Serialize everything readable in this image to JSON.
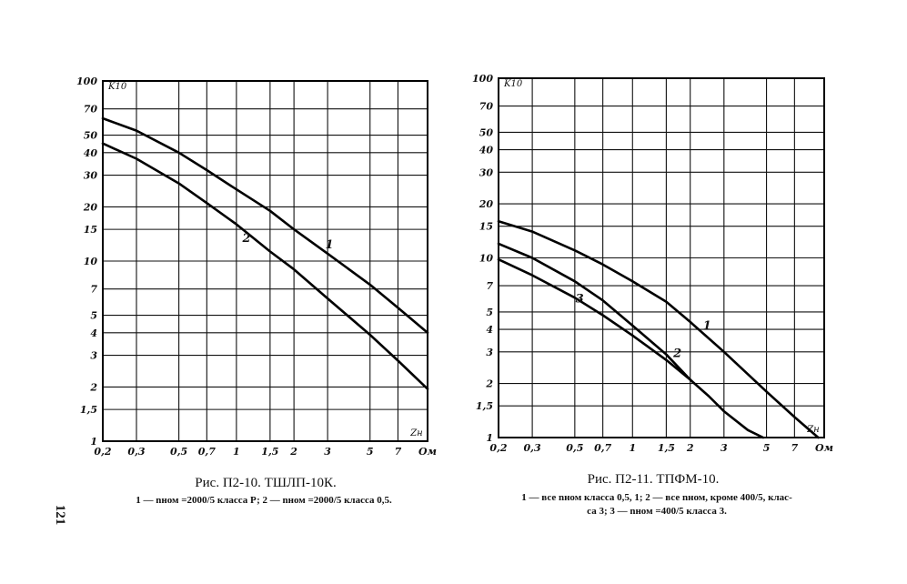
{
  "page_number": "121",
  "figures": [
    {
      "title": "Рис. П2-10. ТШЛП-10К.",
      "legend_line1": "1 — nном =2000/5 класса Р; 2 — nном =2000/5 класса 0,5.",
      "legend_line2": ""
    },
    {
      "title": "Рис. П2-11. ТПФМ-10.",
      "legend_line1": "1 — все nном класса 0,5, 1; 2 — все nном, кроме 400/5, клас-",
      "legend_line2": "са 3; 3 — nном =400/5 класса 3."
    }
  ],
  "chart_data": [
    {
      "type": "line",
      "log_x": true,
      "log_y": true,
      "xlim": [
        0.2,
        10
      ],
      "ylim": [
        1,
        100
      ],
      "x_ticks": [
        {
          "v": 0.2,
          "t": "0,2"
        },
        {
          "v": 0.3,
          "t": "0,3"
        },
        {
          "v": 0.5,
          "t": "0,5"
        },
        {
          "v": 0.7,
          "t": "0,7"
        },
        {
          "v": 1,
          "t": "1"
        },
        {
          "v": 1.5,
          "t": "1,5"
        },
        {
          "v": 2,
          "t": "2"
        },
        {
          "v": 3,
          "t": "3"
        },
        {
          "v": 5,
          "t": "5"
        },
        {
          "v": 7,
          "t": "7"
        },
        {
          "v": 10,
          "t": "Ом"
        }
      ],
      "y_ticks": [
        {
          "v": 1,
          "t": "1"
        },
        {
          "v": 1.5,
          "t": "1,5"
        },
        {
          "v": 2,
          "t": "2"
        },
        {
          "v": 3,
          "t": "3"
        },
        {
          "v": 4,
          "t": "4"
        },
        {
          "v": 5,
          "t": "5"
        },
        {
          "v": 7,
          "t": "7"
        },
        {
          "v": 10,
          "t": "10"
        },
        {
          "v": 15,
          "t": "15"
        },
        {
          "v": 20,
          "t": "20"
        },
        {
          "v": 30,
          "t": "30"
        },
        {
          "v": 40,
          "t": "40"
        },
        {
          "v": 50,
          "t": "50"
        },
        {
          "v": 70,
          "t": "70"
        },
        {
          "v": 100,
          "t": "100"
        }
      ],
      "ylabel": "K10",
      "xlabel": "Zн",
      "series": [
        {
          "name": "1",
          "x": [
            0.2,
            0.3,
            0.5,
            0.7,
            1,
            1.5,
            2,
            3,
            5,
            7,
            10
          ],
          "y": [
            62,
            53,
            40,
            32,
            25,
            19,
            15,
            11,
            7.4,
            5.5,
            4
          ]
        },
        {
          "name": "2",
          "x": [
            0.2,
            0.3,
            0.5,
            0.7,
            1,
            1.5,
            2,
            3,
            5,
            7,
            10
          ],
          "y": [
            45,
            37,
            27,
            21,
            16,
            11.3,
            9,
            6.2,
            3.9,
            2.8,
            1.95
          ]
        }
      ]
    },
    {
      "type": "line",
      "log_x": true,
      "log_y": true,
      "xlim": [
        0.2,
        10
      ],
      "ylim": [
        1,
        100
      ],
      "x_ticks": [
        {
          "v": 0.2,
          "t": "0,2"
        },
        {
          "v": 0.3,
          "t": "0,3"
        },
        {
          "v": 0.5,
          "t": "0,5"
        },
        {
          "v": 0.7,
          "t": "0,7"
        },
        {
          "v": 1,
          "t": "1"
        },
        {
          "v": 1.5,
          "t": "1,5"
        },
        {
          "v": 2,
          "t": "2"
        },
        {
          "v": 3,
          "t": "3"
        },
        {
          "v": 5,
          "t": "5"
        },
        {
          "v": 7,
          "t": "7"
        },
        {
          "v": 10,
          "t": "Ом"
        }
      ],
      "y_ticks": [
        {
          "v": 1,
          "t": "1"
        },
        {
          "v": 1.5,
          "t": "1,5"
        },
        {
          "v": 2,
          "t": "2"
        },
        {
          "v": 3,
          "t": "3"
        },
        {
          "v": 4,
          "t": "4"
        },
        {
          "v": 5,
          "t": "5"
        },
        {
          "v": 7,
          "t": "7"
        },
        {
          "v": 10,
          "t": "10"
        },
        {
          "v": 15,
          "t": "15"
        },
        {
          "v": 20,
          "t": "20"
        },
        {
          "v": 30,
          "t": "30"
        },
        {
          "v": 40,
          "t": "40"
        },
        {
          "v": 50,
          "t": "50"
        },
        {
          "v": 70,
          "t": "70"
        },
        {
          "v": 100,
          "t": "100"
        }
      ],
      "ylabel": "K10",
      "xlabel": "Zн",
      "series": [
        {
          "name": "1",
          "x": [
            0.2,
            0.3,
            0.5,
            0.7,
            1,
            1.5,
            2,
            3,
            5,
            7,
            9.3
          ],
          "y": [
            16,
            14,
            11,
            9.2,
            7.4,
            5.7,
            4.4,
            3.0,
            1.8,
            1.3,
            1
          ]
        },
        {
          "name": "2",
          "x": [
            0.2,
            0.3,
            0.5,
            0.7,
            1,
            1.5,
            2,
            2.5,
            3,
            4,
            4.8
          ],
          "y": [
            12,
            10,
            7.4,
            5.8,
            4.2,
            2.9,
            2.1,
            1.7,
            1.4,
            1.1,
            1
          ]
        },
        {
          "name": "3",
          "x": [
            0.2,
            0.3,
            0.5,
            0.7,
            1,
            1.5,
            2
          ],
          "y": [
            9.8,
            8.0,
            6.0,
            4.8,
            3.7,
            2.7,
            2.1
          ]
        }
      ]
    }
  ]
}
